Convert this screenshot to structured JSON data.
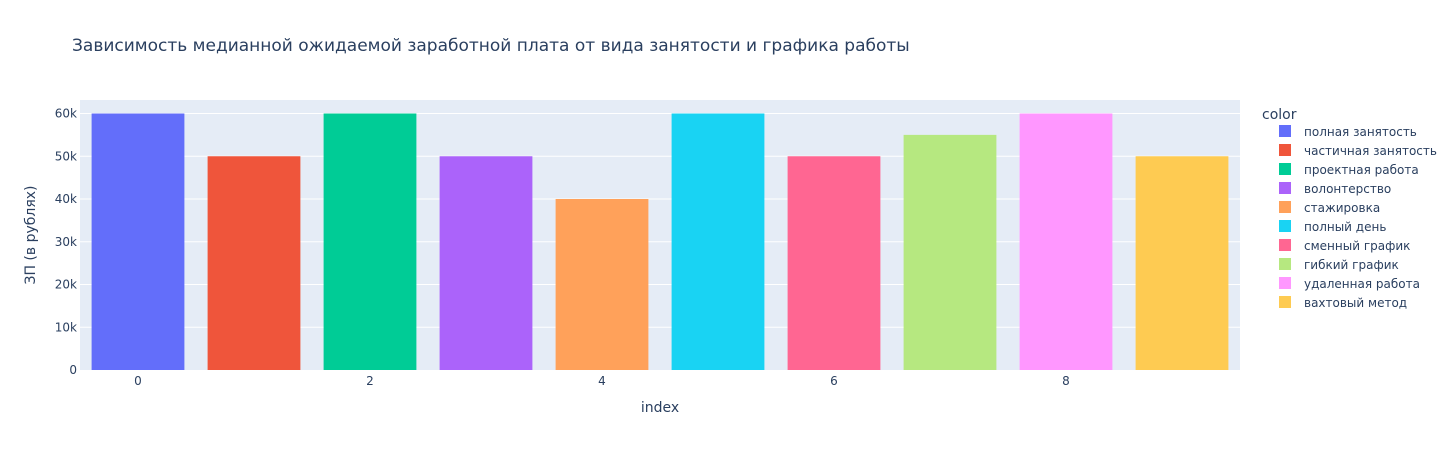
{
  "chart_data": {
    "type": "bar",
    "title": "Зависимость медианной ожидаемой заработной плата от вида занятости и графика работы",
    "xlabel": "index",
    "ylabel": "ЗП (в рублях)",
    "x": [
      0,
      1,
      2,
      3,
      4,
      5,
      6,
      7,
      8,
      9
    ],
    "values": [
      60000,
      50000,
      60000,
      50000,
      40000,
      60000,
      50000,
      55000,
      60000,
      50000
    ],
    "categories": [
      "полная занятость",
      "частичная занятость",
      "проектная работа",
      "волонтерство",
      "стажировка",
      "полный день",
      "сменный график",
      "гибкий график",
      "удаленная работа",
      "вахтовый метод"
    ],
    "colors": [
      "#636efa",
      "#EF553B",
      "#00cc96",
      "#ab63fa",
      "#FFA15A",
      "#19d3f3",
      "#FF6692",
      "#B6E880",
      "#FF97FF",
      "#FECB52"
    ],
    "xticks": [
      "0",
      "2",
      "4",
      "6",
      "8"
    ],
    "xtick_values": [
      0,
      2,
      4,
      6,
      8
    ],
    "yticks": [
      "0",
      "10k",
      "20k",
      "30k",
      "40k",
      "50k",
      "60k"
    ],
    "ytick_values": [
      0,
      10000,
      20000,
      30000,
      40000,
      50000,
      60000
    ],
    "xlim": [
      -0.5,
      9.5
    ],
    "ylim": [
      0,
      63158
    ],
    "grid": true,
    "legend_title": "color",
    "legend_position": "right",
    "plot_bg": "#E5ECF6",
    "text_color": "#2a3f5f"
  }
}
